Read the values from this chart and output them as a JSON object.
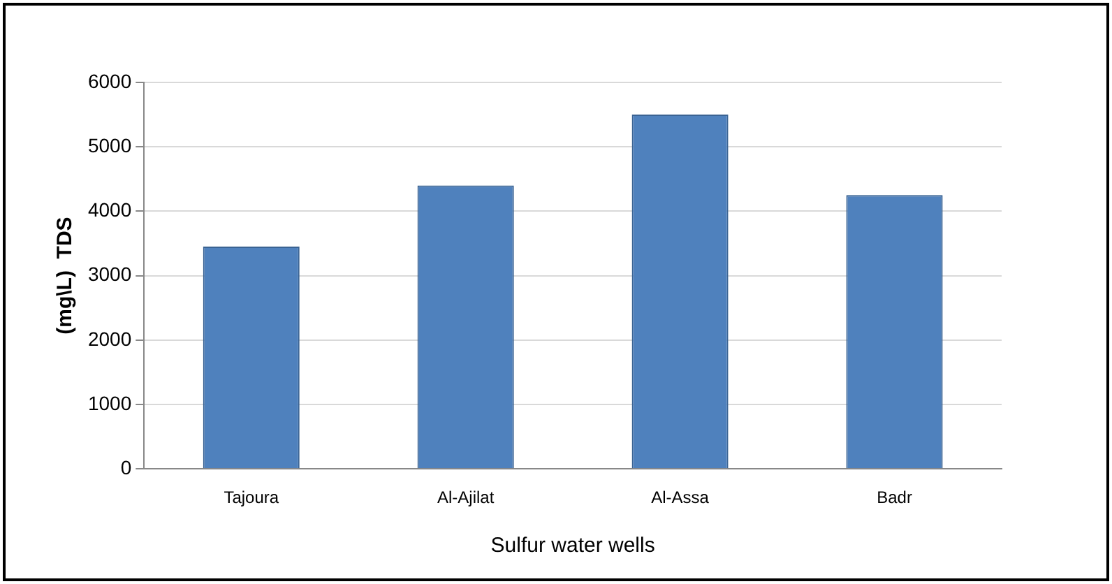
{
  "chart_data": {
    "type": "bar",
    "xlabel": "Sulfur water wells",
    "ylabel": "(mg\\L)  TDS",
    "categories": [
      "Tajoura",
      "Al-Ajilat",
      "Al-Assa",
      "Badr"
    ],
    "values": [
      3450,
      4400,
      5500,
      4250
    ],
    "color": "#4f81bd",
    "ylim": [
      0,
      6000
    ],
    "yticks": [
      0,
      1000,
      2000,
      3000,
      4000,
      5000,
      6000
    ],
    "grid": "y",
    "legend": false
  }
}
